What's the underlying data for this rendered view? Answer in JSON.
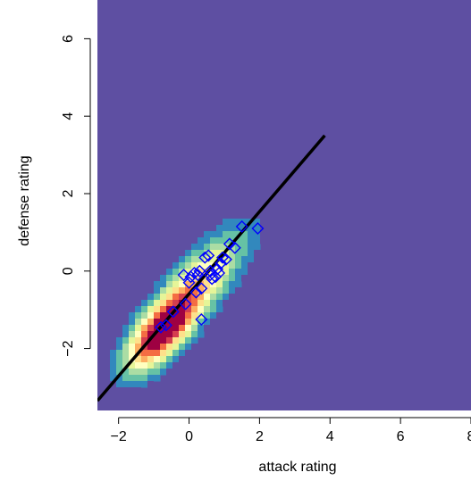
{
  "chart_data": {
    "type": "scatter",
    "title": "",
    "xlabel": "attack rating",
    "ylabel": "defense rating",
    "xlim": [
      -2.6,
      8.0
    ],
    "ylim": [
      -3.6,
      7.0
    ],
    "xticks": [
      -2,
      0,
      2,
      4,
      6,
      8
    ],
    "xtick_labels": [
      "−2",
      "0",
      "2",
      "4",
      "6",
      "8"
    ],
    "yticks": [
      -2,
      0,
      2,
      4,
      6
    ],
    "ytick_labels": [
      "−2",
      "0",
      "2",
      "4",
      "6"
    ],
    "grid": false,
    "background_color": "#5E4FA2",
    "density": {
      "description": "kernel density heatmap",
      "palette": [
        "#5E4FA2",
        "#3288BD",
        "#66C2A5",
        "#ABDDA4",
        "#E6F598",
        "#FFFFBF",
        "#FEE08B",
        "#FDAE61",
        "#F46D43",
        "#D53E4F",
        "#9E0142"
      ],
      "center": [
        -0.8,
        -1.6
      ],
      "ridge_direction": [
        1.0,
        1.0
      ]
    },
    "series": [
      {
        "type": "points",
        "marker": "diamond-open",
        "color": "#0000FF",
        "points": [
          [
            -0.8,
            -1.45
          ],
          [
            -0.65,
            -1.4
          ],
          [
            -0.45,
            -1.05
          ],
          [
            -0.1,
            -0.85
          ],
          [
            0.35,
            -1.25
          ],
          [
            0.2,
            -0.55
          ],
          [
            0.0,
            -0.3
          ],
          [
            -0.15,
            -0.1
          ],
          [
            0.05,
            -0.15
          ],
          [
            0.15,
            -0.05
          ],
          [
            0.3,
            0.0
          ],
          [
            0.35,
            -0.45
          ],
          [
            0.45,
            0.35
          ],
          [
            0.55,
            0.4
          ],
          [
            0.6,
            -0.1
          ],
          [
            0.65,
            -0.2
          ],
          [
            0.75,
            -0.15
          ],
          [
            0.8,
            0.05
          ],
          [
            0.85,
            -0.05
          ],
          [
            0.9,
            0.2
          ],
          [
            0.95,
            0.35
          ],
          [
            1.05,
            0.3
          ],
          [
            1.15,
            0.7
          ],
          [
            1.3,
            0.6
          ],
          [
            1.5,
            1.15
          ],
          [
            1.95,
            1.1
          ],
          [
            0.6,
            0.0
          ],
          [
            0.25,
            -0.1
          ]
        ]
      },
      {
        "type": "line",
        "color": "#000000",
        "points": [
          [
            -2.6,
            -3.35
          ],
          [
            3.85,
            3.5
          ]
        ]
      }
    ]
  }
}
